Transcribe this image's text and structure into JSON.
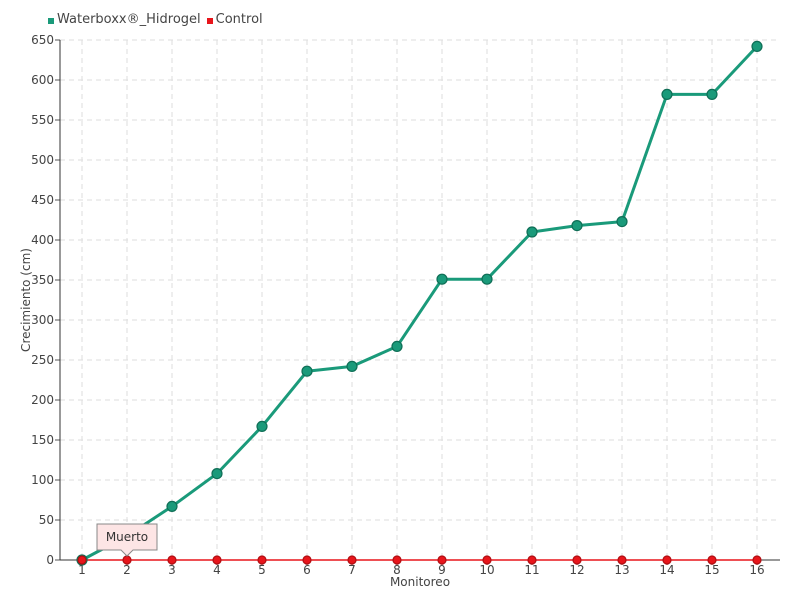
{
  "chart_data": {
    "type": "line",
    "xlabel": "Monitoreo",
    "ylabel": "Crecimiento (cm)",
    "ylim": [
      0,
      650
    ],
    "ytick_step": 50,
    "grid": true,
    "legend_position": "top-left",
    "categories": [
      "1",
      "2",
      "3",
      "4",
      "5",
      "6",
      "7",
      "8",
      "9",
      "10",
      "11",
      "12",
      "13",
      "14",
      "15",
      "16"
    ],
    "series": [
      {
        "name": "Waterboxx®_Hidrogel",
        "color": "#1a9a7a",
        "values": [
          0,
          30,
          67,
          108,
          167,
          236,
          242,
          267,
          351,
          351,
          410,
          418,
          423,
          582,
          582,
          642
        ]
      },
      {
        "name": "Control",
        "color": "#e8151b",
        "values": [
          0,
          0,
          0,
          0,
          0,
          0,
          0,
          0,
          0,
          0,
          0,
          0,
          0,
          0,
          0,
          0
        ]
      }
    ],
    "tooltip": {
      "text": "Muerto",
      "category": "2",
      "series": "Control"
    }
  }
}
